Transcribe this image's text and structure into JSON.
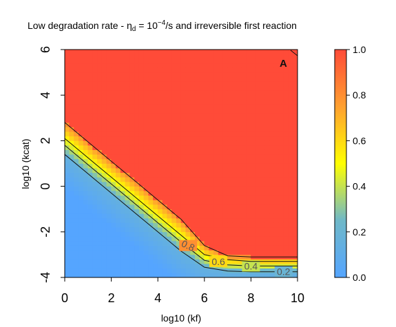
{
  "chart_data": {
    "type": "heatmap",
    "title_main": "Low degradation rate - ",
    "title_symbol": "η",
    "title_symbol_sub": "d",
    "title_eq": " = 10",
    "title_exp": "−4",
    "title_rest": "/s and irreversible first reaction",
    "xlabel": "log10 (kf)",
    "ylabel": "log10 (kcat)",
    "xlim": [
      0,
      10
    ],
    "ylim": [
      -4,
      6
    ],
    "x_ticks": [
      "0",
      "2",
      "4",
      "6",
      "8",
      "10"
    ],
    "x_tick_values": [
      0,
      2,
      4,
      6,
      8,
      10
    ],
    "y_ticks": [
      "-4",
      "-2",
      "0",
      "2",
      "4",
      "6"
    ],
    "y_tick_values": [
      -4,
      -2,
      0,
      2,
      4,
      6
    ],
    "panel_label": "A",
    "colorbar": {
      "range": [
        0,
        1
      ],
      "ticks": [
        "0.0",
        "0.2",
        "0.4",
        "0.6",
        "0.8",
        "1.0"
      ],
      "tick_values": [
        0,
        0.2,
        0.4,
        0.6,
        0.8,
        1.0
      ],
      "colors": [
        "#55a5ff",
        "#6fb8c8",
        "#ffff00",
        "#ffa030",
        "#ff4b38"
      ]
    },
    "contours": [
      {
        "level": 0.2,
        "label": "0.2",
        "points": [
          [
            0,
            1.4
          ],
          [
            1,
            0.55
          ],
          [
            2,
            -0.3
          ],
          [
            3,
            -1.15
          ],
          [
            4,
            -2.0
          ],
          [
            5,
            -2.85
          ],
          [
            6,
            -3.55
          ],
          [
            7,
            -3.72
          ],
          [
            8,
            -3.75
          ],
          [
            10,
            -3.75
          ]
        ]
      },
      {
        "level": 0.4,
        "label": "0.4",
        "points": [
          [
            0,
            1.8
          ],
          [
            1,
            0.95
          ],
          [
            2,
            0.1
          ],
          [
            3,
            -0.75
          ],
          [
            4,
            -1.6
          ],
          [
            5,
            -2.45
          ],
          [
            6,
            -3.25
          ],
          [
            7,
            -3.45
          ],
          [
            8,
            -3.5
          ],
          [
            10,
            -3.5
          ]
        ]
      },
      {
        "level": 0.6,
        "label": "0.6",
        "points": [
          [
            0,
            2.1
          ],
          [
            1,
            1.25
          ],
          [
            2,
            0.4
          ],
          [
            3,
            -0.45
          ],
          [
            4,
            -1.3
          ],
          [
            5,
            -2.15
          ],
          [
            6,
            -3.0
          ],
          [
            7,
            -3.22
          ],
          [
            8,
            -3.3
          ],
          [
            10,
            -3.3
          ]
        ]
      },
      {
        "level": 0.8,
        "label": "0.8",
        "points": [
          [
            0,
            2.8
          ],
          [
            1,
            1.95
          ],
          [
            2,
            1.1
          ],
          [
            3,
            0.25
          ],
          [
            4,
            -0.6
          ],
          [
            5,
            -1.45
          ],
          [
            6,
            -2.6
          ],
          [
            7,
            -3.05
          ],
          [
            8,
            -3.1
          ],
          [
            10,
            -3.1
          ]
        ]
      }
    ]
  }
}
